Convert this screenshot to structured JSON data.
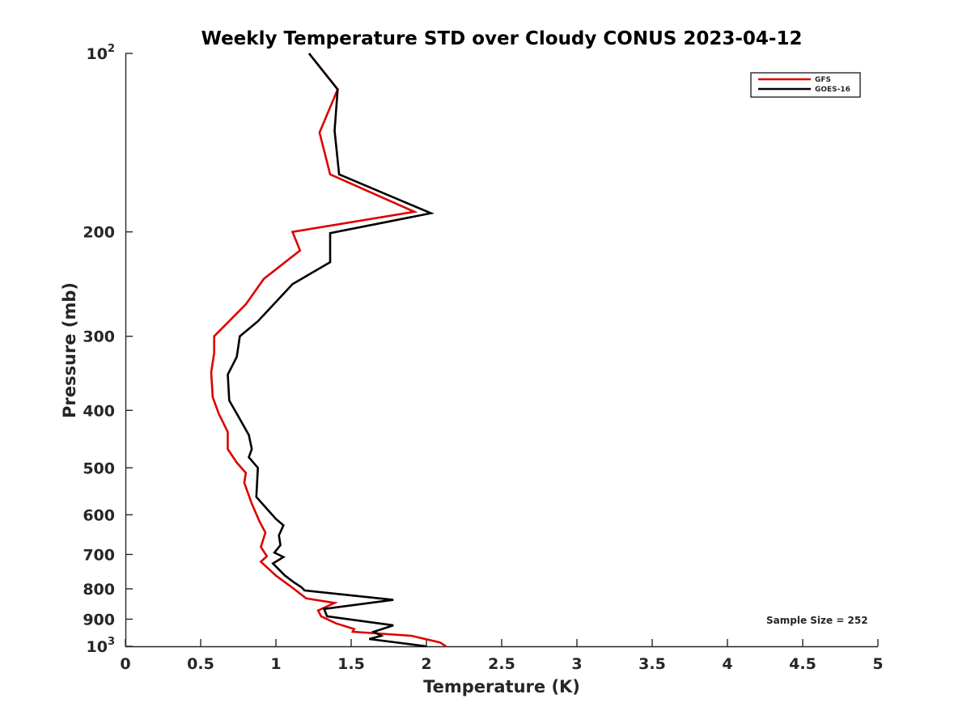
{
  "chart_data": {
    "type": "line",
    "title": "Weekly Temperature STD over Cloudy CONUS 2023-04-12",
    "xlabel": "Temperature (K)",
    "ylabel": "Pressure (mb)",
    "xlim": [
      0,
      5
    ],
    "ylim": [
      100,
      1000
    ],
    "yscale": "log",
    "y_reversed": true,
    "grid": false,
    "legend_position": "top-right",
    "xticks": [
      0,
      0.5,
      1,
      1.5,
      2,
      2.5,
      3,
      3.5,
      4,
      4.5,
      5
    ],
    "xtick_labels": [
      "0",
      "0.5",
      "1",
      "1.5",
      "2",
      "2.5",
      "3",
      "3.5",
      "4",
      "4.5",
      "5"
    ],
    "yticks": [
      100,
      200,
      300,
      400,
      500,
      600,
      700,
      800,
      900,
      1000
    ],
    "ytick_labels": [
      {
        "base": "10",
        "exp": "2"
      },
      {
        "base": "200",
        "exp": ""
      },
      {
        "base": "300",
        "exp": ""
      },
      {
        "base": "400",
        "exp": ""
      },
      {
        "base": "500",
        "exp": ""
      },
      {
        "base": "600",
        "exp": ""
      },
      {
        "base": "700",
        "exp": ""
      },
      {
        "base": "800",
        "exp": ""
      },
      {
        "base": "900",
        "exp": ""
      },
      {
        "base": "10",
        "exp": "3"
      }
    ],
    "annotation": "Sample Size = 252",
    "series": [
      {
        "name": "GFS",
        "color": "#dd0000",
        "points": [
          [
            1.22,
            100
          ],
          [
            1.41,
            115
          ],
          [
            1.29,
            136
          ],
          [
            1.36,
            160
          ],
          [
            1.92,
            185
          ],
          [
            1.11,
            200
          ],
          [
            1.16,
            215
          ],
          [
            0.92,
            240
          ],
          [
            0.8,
            265
          ],
          [
            0.59,
            300
          ],
          [
            0.59,
            320
          ],
          [
            0.57,
            345
          ],
          [
            0.58,
            380
          ],
          [
            0.62,
            405
          ],
          [
            0.68,
            435
          ],
          [
            0.68,
            465
          ],
          [
            0.74,
            490
          ],
          [
            0.8,
            510
          ],
          [
            0.79,
            530
          ],
          [
            0.84,
            575
          ],
          [
            0.89,
            615
          ],
          [
            0.93,
            643
          ],
          [
            0.9,
            680
          ],
          [
            0.94,
            705
          ],
          [
            0.9,
            720
          ],
          [
            1.0,
            760
          ],
          [
            1.12,
            800
          ],
          [
            1.2,
            830
          ],
          [
            1.39,
            845
          ],
          [
            1.28,
            870
          ],
          [
            1.3,
            890
          ],
          [
            1.4,
            915
          ],
          [
            1.52,
            935
          ],
          [
            1.51,
            945
          ],
          [
            1.9,
            960
          ],
          [
            2.09,
            985
          ],
          [
            2.13,
            1000
          ]
        ]
      },
      {
        "name": "GOES-16",
        "color": "#000000",
        "points": [
          [
            1.22,
            100
          ],
          [
            1.41,
            115
          ],
          [
            1.39,
            135
          ],
          [
            1.42,
            160
          ],
          [
            2.03,
            186
          ],
          [
            1.36,
            201
          ],
          [
            1.36,
            225
          ],
          [
            1.11,
            245
          ],
          [
            0.88,
            283
          ],
          [
            0.76,
            300
          ],
          [
            0.74,
            325
          ],
          [
            0.68,
            348
          ],
          [
            0.69,
            385
          ],
          [
            0.74,
            405
          ],
          [
            0.82,
            440
          ],
          [
            0.84,
            465
          ],
          [
            0.82,
            480
          ],
          [
            0.88,
            500
          ],
          [
            0.87,
            560
          ],
          [
            1.0,
            610
          ],
          [
            1.05,
            625
          ],
          [
            1.02,
            650
          ],
          [
            1.03,
            675
          ],
          [
            0.99,
            695
          ],
          [
            1.05,
            707
          ],
          [
            0.98,
            725
          ],
          [
            1.06,
            760
          ],
          [
            1.12,
            780
          ],
          [
            1.17,
            795
          ],
          [
            1.19,
            805
          ],
          [
            1.78,
            835
          ],
          [
            1.32,
            865
          ],
          [
            1.34,
            890
          ],
          [
            1.78,
            922
          ],
          [
            1.65,
            945
          ],
          [
            1.7,
            960
          ],
          [
            1.62,
            972
          ],
          [
            2.0,
            1000
          ]
        ]
      }
    ]
  }
}
